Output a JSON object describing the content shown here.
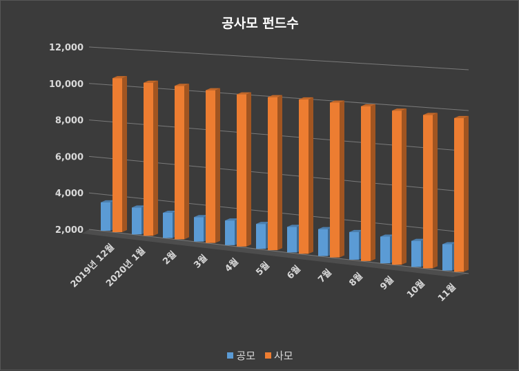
{
  "chart_data": {
    "type": "bar",
    "title": "공사모 펀드수",
    "categories": [
      "2019년 12월",
      "2020년 1월",
      "2월",
      "3월",
      "4월",
      "5월",
      "6월",
      "7월",
      "8월",
      "9월",
      "10월",
      "11월"
    ],
    "series": [
      {
        "name": "공모",
        "color": "#5b9bd5",
        "values": [
          3550,
          3450,
          3350,
          3300,
          3300,
          3300,
          3320,
          3380,
          3400,
          3340,
          3300,
          3300
        ]
      },
      {
        "name": "사모",
        "color": "#ed7d31",
        "values": [
          10380,
          10250,
          10200,
          10080,
          9980,
          9950,
          9950,
          9900,
          9830,
          9720,
          9620,
          9580
        ]
      }
    ],
    "yticks": [
      "2,000",
      "4,000",
      "6,000",
      "8,000",
      "10,000",
      "12,000"
    ],
    "ylim": [
      2000,
      12000
    ],
    "grid": true,
    "legend": "bottom",
    "xlabel": "",
    "ylabel": ""
  }
}
